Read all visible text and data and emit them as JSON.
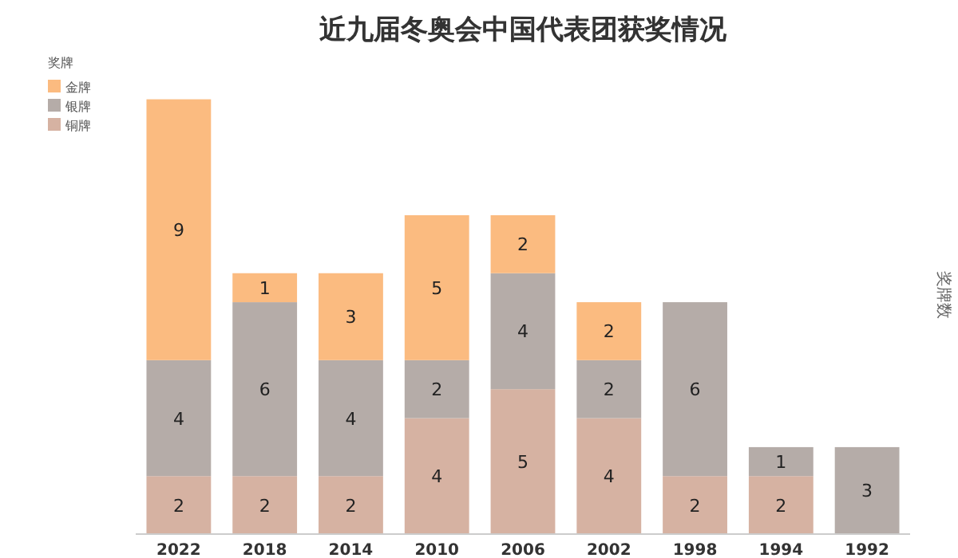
{
  "chart_data": {
    "type": "bar",
    "stacked": true,
    "title": "近九届冬奥会中国代表团获奖情况",
    "ylabel": "奖牌数",
    "legend_title": "奖牌",
    "legend": "top left",
    "data_labels": true,
    "categories": [
      "2022",
      "2018",
      "2014",
      "2010",
      "2006",
      "2002",
      "1998",
      "1994",
      "1992"
    ],
    "series": [
      {
        "name": "铜牌",
        "color": "#d6b2a2",
        "values": [
          2,
          2,
          2,
          4,
          5,
          4,
          2,
          2,
          null
        ]
      },
      {
        "name": "银牌",
        "color": "#b5aca8",
        "values": [
          4,
          6,
          4,
          2,
          4,
          2,
          6,
          1,
          3
        ]
      },
      {
        "name": "金牌",
        "color": "#fbbb80",
        "values": [
          9,
          1,
          3,
          5,
          2,
          2,
          null,
          null,
          null
        ]
      }
    ]
  }
}
